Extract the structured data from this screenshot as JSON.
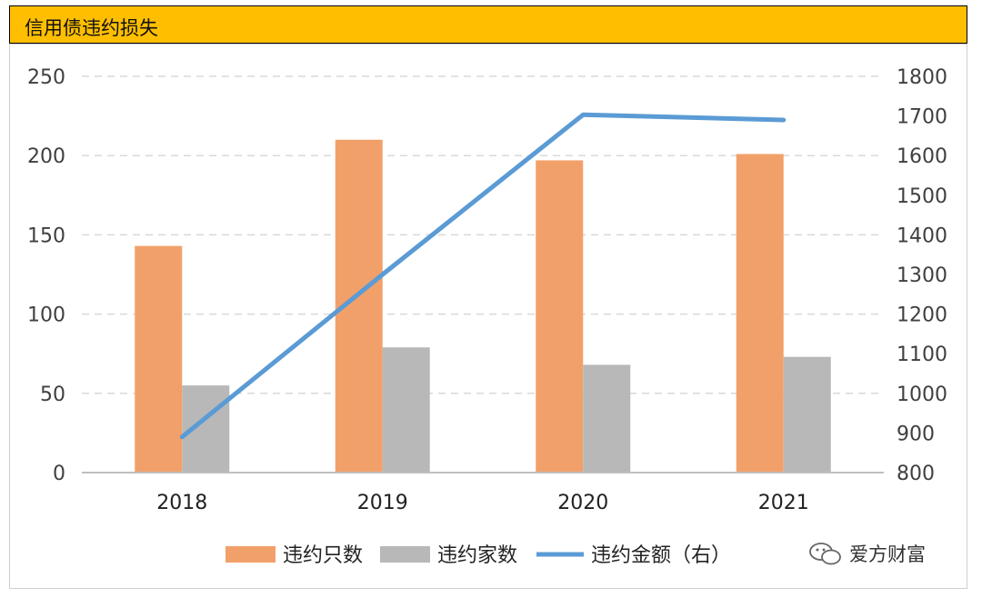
{
  "title": "信用债违约损失",
  "watermark": "爱方财富",
  "colors": {
    "title_bg": "#ffbf00",
    "bar_count": "#f2a06a",
    "bar_issuers": "#b8b8b8",
    "line_amount": "#5b9bd5",
    "grid": "#d9d9d9",
    "axis_text": "#404040"
  },
  "chart_data": {
    "type": "bar",
    "categories": [
      "2018",
      "2019",
      "2020",
      "2021"
    ],
    "series": [
      {
        "name": "违约只数",
        "type": "bar",
        "axis": "left",
        "values": [
          143,
          210,
          197,
          201
        ]
      },
      {
        "name": "违约家数",
        "type": "bar",
        "axis": "left",
        "values": [
          55,
          79,
          68,
          73
        ]
      },
      {
        "name": "违约金额（右）",
        "type": "line",
        "axis": "right",
        "values": [
          890,
          1300,
          1703,
          1690
        ]
      }
    ],
    "y_left": {
      "min": 0,
      "max": 250,
      "ticks": [
        0,
        50,
        100,
        150,
        200,
        250
      ]
    },
    "y_right": {
      "min": 800,
      "max": 1800,
      "ticks": [
        800,
        900,
        1000,
        1100,
        1200,
        1300,
        1400,
        1500,
        1600,
        1700,
        1800
      ]
    },
    "grid": true,
    "legend_position": "bottom"
  }
}
